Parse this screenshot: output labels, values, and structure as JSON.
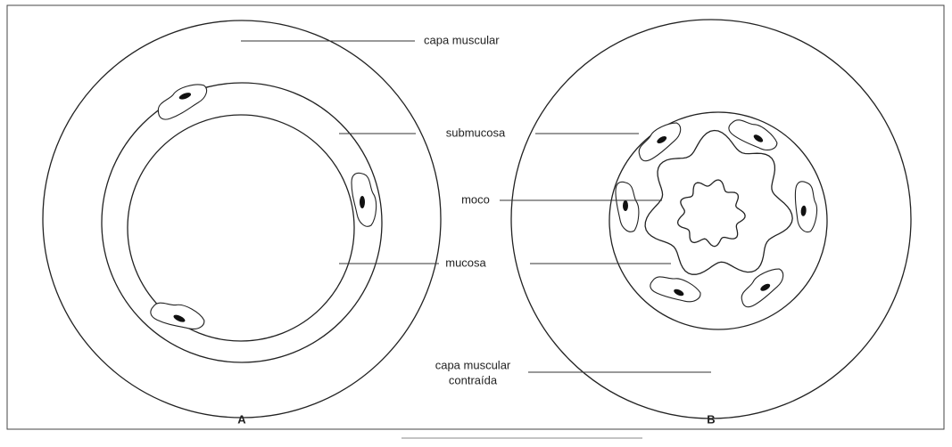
{
  "labels": {
    "capa_muscular": "capa muscular",
    "submucosa": "submucosa",
    "moco": "moco",
    "mucosa": "mucosa",
    "capa_muscular_contraida": [
      "capa muscular",
      "contraída"
    ]
  },
  "panels": [
    "A",
    "B"
  ]
}
